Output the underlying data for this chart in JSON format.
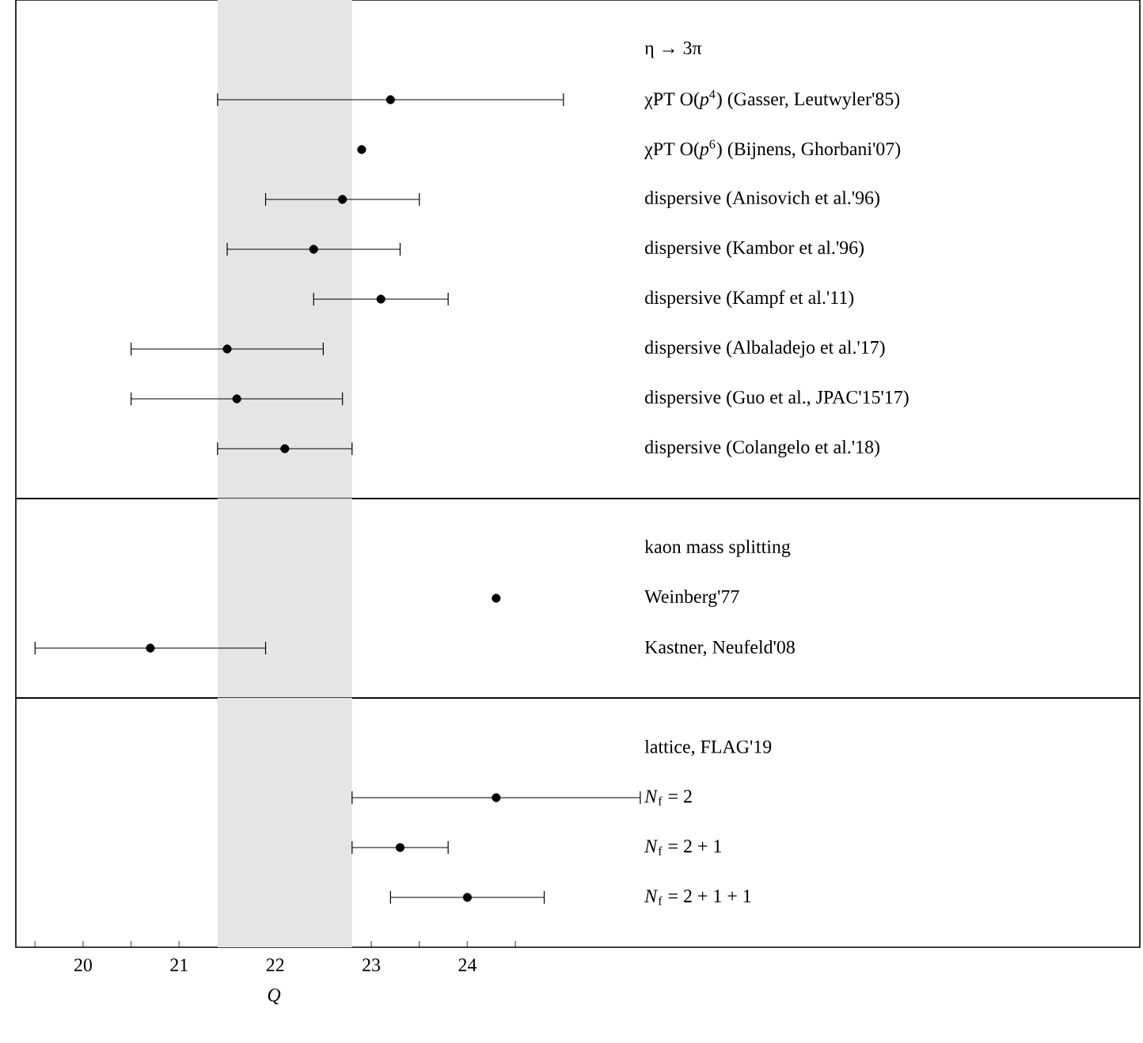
{
  "chart_data": [
    {
      "type": "scatter",
      "orientation": "horizontal",
      "title": "η → 3π",
      "categories": [
        "χPT O(*p*$^{4}$) (Gasser, Leutwyler'85)",
        "χPT O(*p*$^{6}$) (Bijnens, Ghorbani'07)",
        "dispersive (Anisovich et al.'96)",
        "dispersive (Kambor et al.'96)",
        "dispersive (Kampf et al.'11)",
        "dispersive (Albaladejo et al.'17)",
        "dispersive (Guo et al., JPAC'15'17)",
        "dispersive (Colangelo et al.'18)"
      ],
      "series": [
        {
          "color": "#000000",
          "values": [
            23.2,
            22.9,
            22.7,
            22.4,
            23.1,
            21.5,
            21.6,
            22.1
          ],
          "errors": [
            1.8,
            null,
            0.8,
            0.9,
            0.7,
            1.0,
            1.1,
            0.7
          ]
        }
      ],
      "xlim": [
        19.3,
        31
      ],
      "bands": [
        {
          "axis": "x",
          "from": 21.4,
          "to": 22.8,
          "color": "#e5e5e5"
        }
      ],
      "marker": "circle",
      "grid": false,
      "tick_labels": "y"
    },
    {
      "type": "scatter",
      "orientation": "horizontal",
      "title": "kaon mass splitting",
      "categories": [
        "Weinberg'77",
        "Kastner, Neufeld'08"
      ],
      "series": [
        {
          "color": "#000000",
          "values": [
            24.3,
            20.7
          ],
          "errors": [
            null,
            1.2
          ]
        }
      ],
      "xlim": [
        19.3,
        31
      ],
      "bands": [
        {
          "axis": "x",
          "from": 21.4,
          "to": 22.8,
          "color": "#e5e5e5"
        }
      ],
      "marker": "circle",
      "grid": false,
      "tick_labels": "y"
    },
    {
      "type": "scatter",
      "orientation": "horizontal",
      "title": "lattice, FLAG'19",
      "xlabel": "Q",
      "categories": [
        "*N*$_{f}$ = 2",
        "*N*$_{f}$ = 2 + 1",
        "*N*$_{f}$ = 2 + 1 + 1"
      ],
      "series": [
        {
          "color": "#000000",
          "values": [
            24.3,
            23.3,
            24.0
          ],
          "errors": [
            1.5,
            0.5,
            0.8
          ]
        }
      ],
      "xlim": [
        19.3,
        31
      ],
      "xticks": [
        {
          "value": 19.5,
          "label": null
        },
        20,
        {
          "value": 20.5,
          "label": null
        },
        21,
        {
          "value": 21.5,
          "label": null
        },
        22,
        {
          "value": 22.5,
          "label": null
        },
        23,
        {
          "value": 23.5,
          "label": null
        },
        24,
        {
          "value": 24.5,
          "label": null
        }
      ],
      "bands": [
        {
          "axis": "x",
          "from": 21.4,
          "to": 22.8,
          "color": "#e5e5e5"
        }
      ],
      "marker": "circle",
      "grid": false
    }
  ]
}
